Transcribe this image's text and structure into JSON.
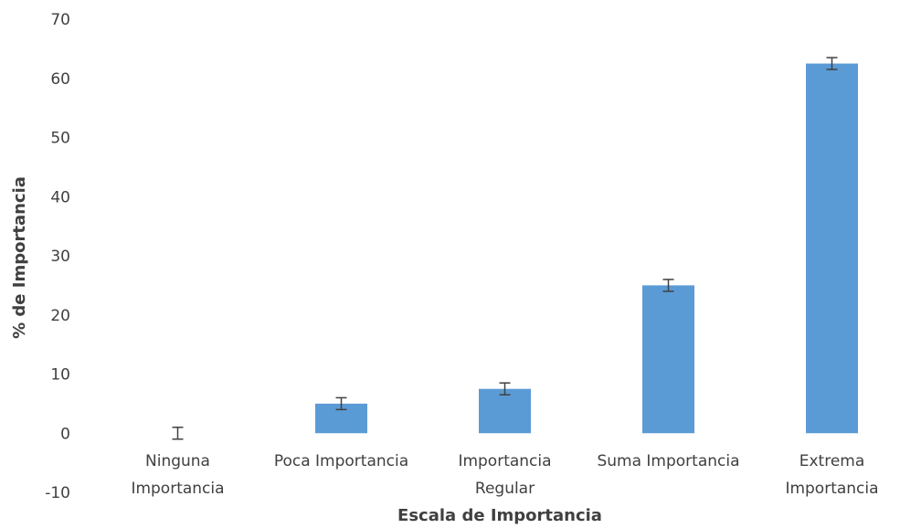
{
  "chart_data": {
    "type": "bar",
    "title": "",
    "xlabel": "Escala de Importancia",
    "ylabel": "% de Importancia",
    "categories": [
      [
        "Ninguna",
        "Importancia"
      ],
      [
        "Poca Importancia"
      ],
      [
        "Importancia",
        "Regular"
      ],
      [
        "Suma Importancia"
      ],
      [
        "Extrema",
        "Importancia"
      ]
    ],
    "values": [
      0,
      5,
      7.5,
      25,
      62.5
    ],
    "error": [
      1,
      1,
      1,
      1,
      1
    ],
    "ylim": [
      -10,
      70
    ],
    "yticks": [
      -10,
      0,
      10,
      20,
      30,
      40,
      50,
      60,
      70
    ],
    "grid": false,
    "legend": "none",
    "colors": {
      "bar": "#5B9BD5",
      "error_bar": "#404040",
      "text": "#404040"
    }
  }
}
